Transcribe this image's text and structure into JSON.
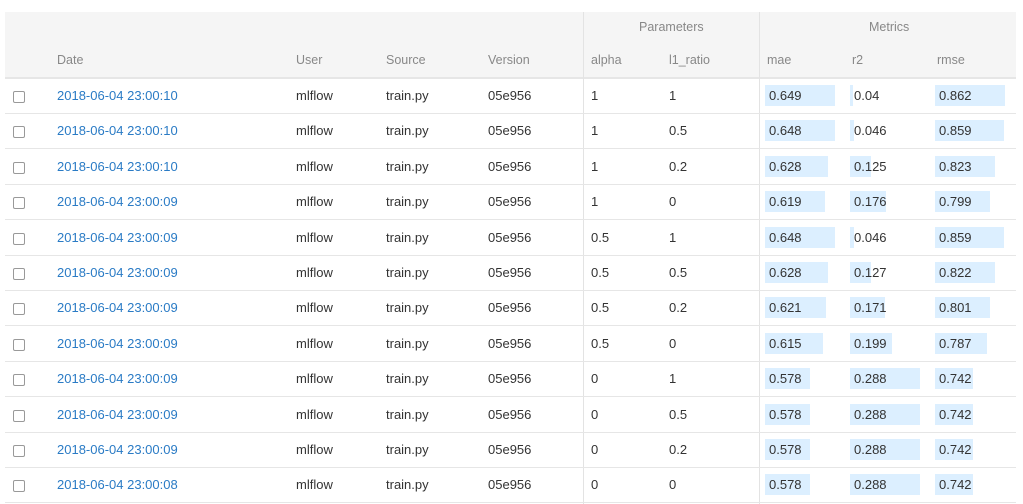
{
  "header": {
    "groups": {
      "parameters": "Parameters",
      "metrics": "Metrics"
    },
    "columns": {
      "date": "Date",
      "user": "User",
      "source": "Source",
      "version": "Version",
      "alpha": "alpha",
      "l1_ratio": "l1_ratio",
      "mae": "mae",
      "r2": "r2",
      "rmse": "rmse"
    }
  },
  "bar_color": "#dcefff",
  "rows": [
    {
      "date": "2018-06-04 23:00:10",
      "user": "mlflow",
      "source": "train.py",
      "version": "05e956",
      "alpha": "1",
      "l1_ratio": "1",
      "mae": "0.649",
      "r2": "0.04",
      "rmse": "0.862",
      "mae_fill": 1,
      "r2_fill": 0.04,
      "rmse_fill": 1
    },
    {
      "date": "2018-06-04 23:00:10",
      "user": "mlflow",
      "source": "train.py",
      "version": "05e956",
      "alpha": "1",
      "l1_ratio": "0.5",
      "mae": "0.648",
      "r2": "0.046",
      "rmse": "0.859",
      "mae_fill": 1,
      "r2_fill": 0.06,
      "rmse_fill": 0.98
    },
    {
      "date": "2018-06-04 23:00:10",
      "user": "mlflow",
      "source": "train.py",
      "version": "05e956",
      "alpha": "1",
      "l1_ratio": "0.2",
      "mae": "0.628",
      "r2": "0.125",
      "rmse": "0.823",
      "mae_fill": 0.9,
      "r2_fill": 0.3,
      "rmse_fill": 0.86
    },
    {
      "date": "2018-06-04 23:00:09",
      "user": "mlflow",
      "source": "train.py",
      "version": "05e956",
      "alpha": "1",
      "l1_ratio": "0",
      "mae": "0.619",
      "r2": "0.176",
      "rmse": "0.799",
      "mae_fill": 0.86,
      "r2_fill": 0.52,
      "rmse_fill": 0.78
    },
    {
      "date": "2018-06-04 23:00:09",
      "user": "mlflow",
      "source": "train.py",
      "version": "05e956",
      "alpha": "0.5",
      "l1_ratio": "1",
      "mae": "0.648",
      "r2": "0.046",
      "rmse": "0.859",
      "mae_fill": 1,
      "r2_fill": 0.06,
      "rmse_fill": 0.98
    },
    {
      "date": "2018-06-04 23:00:09",
      "user": "mlflow",
      "source": "train.py",
      "version": "05e956",
      "alpha": "0.5",
      "l1_ratio": "0.5",
      "mae": "0.628",
      "r2": "0.127",
      "rmse": "0.822",
      "mae_fill": 0.9,
      "r2_fill": 0.3,
      "rmse_fill": 0.86
    },
    {
      "date": "2018-06-04 23:00:09",
      "user": "mlflow",
      "source": "train.py",
      "version": "05e956",
      "alpha": "0.5",
      "l1_ratio": "0.2",
      "mae": "0.621",
      "r2": "0.171",
      "rmse": "0.801",
      "mae_fill": 0.87,
      "r2_fill": 0.5,
      "rmse_fill": 0.79
    },
    {
      "date": "2018-06-04 23:00:09",
      "user": "mlflow",
      "source": "train.py",
      "version": "05e956",
      "alpha": "0.5",
      "l1_ratio": "0",
      "mae": "0.615",
      "r2": "0.199",
      "rmse": "0.787",
      "mae_fill": 0.83,
      "r2_fill": 0.6,
      "rmse_fill": 0.74
    },
    {
      "date": "2018-06-04 23:00:09",
      "user": "mlflow",
      "source": "train.py",
      "version": "05e956",
      "alpha": "0",
      "l1_ratio": "1",
      "mae": "0.578",
      "r2": "0.288",
      "rmse": "0.742",
      "mae_fill": 0.64,
      "r2_fill": 1,
      "rmse_fill": 0.54
    },
    {
      "date": "2018-06-04 23:00:09",
      "user": "mlflow",
      "source": "train.py",
      "version": "05e956",
      "alpha": "0",
      "l1_ratio": "0.5",
      "mae": "0.578",
      "r2": "0.288",
      "rmse": "0.742",
      "mae_fill": 0.64,
      "r2_fill": 1,
      "rmse_fill": 0.54
    },
    {
      "date": "2018-06-04 23:00:09",
      "user": "mlflow",
      "source": "train.py",
      "version": "05e956",
      "alpha": "0",
      "l1_ratio": "0.2",
      "mae": "0.578",
      "r2": "0.288",
      "rmse": "0.742",
      "mae_fill": 0.64,
      "r2_fill": 1,
      "rmse_fill": 0.54
    },
    {
      "date": "2018-06-04 23:00:08",
      "user": "mlflow",
      "source": "train.py",
      "version": "05e956",
      "alpha": "0",
      "l1_ratio": "0",
      "mae": "0.578",
      "r2": "0.288",
      "rmse": "0.742",
      "mae_fill": 0.64,
      "r2_fill": 1,
      "rmse_fill": 0.54
    }
  ]
}
